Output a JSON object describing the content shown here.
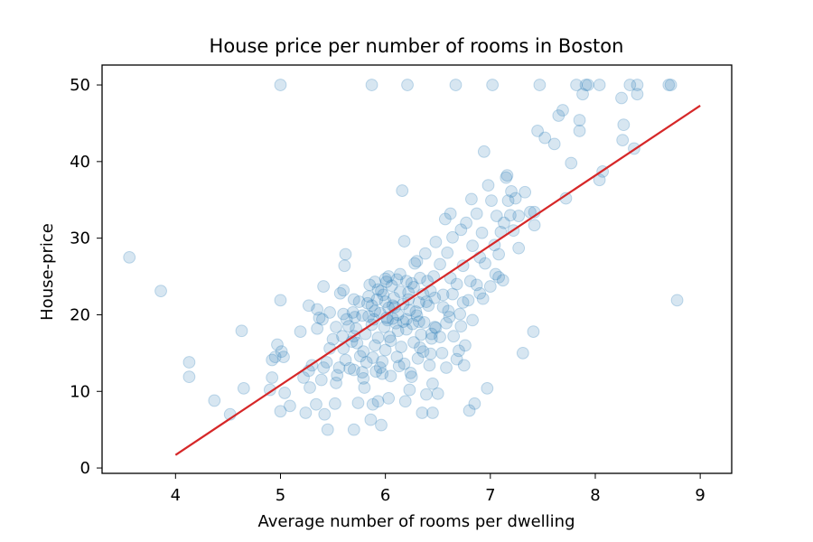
{
  "chart_data": {
    "type": "scatter",
    "title": "House price per number of rooms in Boston",
    "xlabel": "Average number of rooms per dwelling",
    "ylabel": "House-price",
    "xlim": [
      3.3,
      9.3
    ],
    "ylim": [
      -0.7,
      52.6
    ],
    "xticks": [
      4,
      5,
      6,
      7,
      8,
      9
    ],
    "yticks": [
      0,
      10,
      20,
      30,
      40,
      50
    ],
    "grid": false,
    "legend": "none",
    "series": [
      {
        "kind": "scatter",
        "color": "#1f77b4",
        "alpha": 0.18,
        "points": [
          [
            3.56,
            27.5
          ],
          [
            3.86,
            23.1
          ],
          [
            4.13,
            13.8
          ],
          [
            4.13,
            11.9
          ],
          [
            4.37,
            8.8
          ],
          [
            4.52,
            7.0
          ],
          [
            4.63,
            17.9
          ],
          [
            4.65,
            10.4
          ],
          [
            4.9,
            10.2
          ],
          [
            4.92,
            11.8
          ],
          [
            4.92,
            14.1
          ],
          [
            4.95,
            14.5
          ],
          [
            4.97,
            16.1
          ],
          [
            5.0,
            21.9
          ],
          [
            5.0,
            7.4
          ],
          [
            5.01,
            15.2
          ],
          [
            5.03,
            14.5
          ],
          [
            5.04,
            9.8
          ],
          [
            5.09,
            8.1
          ],
          [
            5.0,
            50.0
          ],
          [
            5.19,
            17.8
          ],
          [
            5.24,
            7.2
          ],
          [
            5.27,
            12.7
          ],
          [
            5.28,
            10.5
          ],
          [
            5.3,
            13.4
          ],
          [
            5.34,
            8.3
          ],
          [
            5.35,
            20.7
          ],
          [
            5.37,
            19.6
          ],
          [
            5.4,
            19.4
          ],
          [
            5.41,
            23.7
          ],
          [
            5.41,
            13.1
          ],
          [
            5.42,
            7.0
          ],
          [
            5.44,
            13.8
          ],
          [
            5.45,
            5.0
          ],
          [
            5.47,
            15.6
          ],
          [
            5.52,
            8.4
          ],
          [
            5.53,
            11.1
          ],
          [
            5.54,
            12.1
          ],
          [
            5.56,
            13.1
          ],
          [
            5.57,
            22.8
          ],
          [
            5.59,
            17.2
          ],
          [
            5.6,
            23.2
          ],
          [
            5.6,
            20.1
          ],
          [
            5.6,
            15.6
          ],
          [
            5.61,
            26.4
          ],
          [
            5.62,
            27.9
          ],
          [
            5.63,
            19.4
          ],
          [
            5.65,
            18.5
          ],
          [
            5.68,
            16.5
          ],
          [
            5.69,
            20.3
          ],
          [
            5.7,
            5.0
          ],
          [
            5.7,
            12.8
          ],
          [
            5.7,
            17.2
          ],
          [
            5.7,
            22.0
          ],
          [
            5.71,
            19.7
          ],
          [
            5.72,
            18.2
          ],
          [
            5.73,
            16.3
          ],
          [
            5.75,
            21.7
          ],
          [
            5.76,
            14.6
          ],
          [
            5.78,
            19.9
          ],
          [
            5.79,
            15.2
          ],
          [
            5.8,
            10.5
          ],
          [
            5.81,
            17.5
          ],
          [
            5.82,
            13.8
          ],
          [
            5.83,
            21.5
          ],
          [
            5.84,
            19.8
          ],
          [
            5.85,
            23.9
          ],
          [
            5.86,
            6.3
          ],
          [
            5.87,
            18.7
          ],
          [
            5.87,
            21.2
          ],
          [
            5.88,
            8.3
          ],
          [
            5.89,
            19.4
          ],
          [
            5.9,
            24.3
          ],
          [
            5.9,
            20.5
          ],
          [
            5.9,
            16.0
          ],
          [
            5.91,
            12.6
          ],
          [
            5.92,
            22.0
          ],
          [
            5.93,
            17.0
          ],
          [
            5.93,
            8.7
          ],
          [
            5.95,
            20.2
          ],
          [
            5.96,
            23.1
          ],
          [
            5.97,
            13.9
          ],
          [
            5.98,
            22.6
          ],
          [
            5.99,
            18.4
          ],
          [
            6.0,
            21.7
          ],
          [
            6.0,
            24.7
          ],
          [
            6.0,
            15.4
          ],
          [
            6.01,
            19.6
          ],
          [
            6.02,
            19.3
          ],
          [
            6.03,
            20.9
          ],
          [
            6.04,
            17.1
          ],
          [
            6.05,
            12.0
          ],
          [
            6.06,
            23.8
          ],
          [
            6.07,
            19.5
          ],
          [
            6.08,
            22.2
          ],
          [
            6.09,
            21.0
          ],
          [
            6.1,
            18.9
          ],
          [
            6.11,
            24.6
          ],
          [
            6.12,
            20.0
          ],
          [
            6.13,
            13.3
          ],
          [
            6.14,
            23.0
          ],
          [
            6.15,
            15.8
          ],
          [
            6.16,
            36.2
          ],
          [
            6.17,
            19.1
          ],
          [
            6.17,
            21.4
          ],
          [
            6.18,
            29.6
          ],
          [
            6.19,
            8.7
          ],
          [
            6.2,
            24.4
          ],
          [
            6.2,
            18.1
          ],
          [
            6.21,
            50.0
          ],
          [
            6.22,
            22.9
          ],
          [
            6.23,
            20.6
          ],
          [
            6.24,
            12.4
          ],
          [
            6.25,
            24.1
          ],
          [
            6.26,
            18.8
          ],
          [
            6.27,
            23.6
          ],
          [
            6.28,
            26.7
          ],
          [
            6.29,
            20.4
          ],
          [
            6.3,
            19.9
          ],
          [
            6.31,
            14.3
          ],
          [
            6.32,
            21.6
          ],
          [
            6.33,
            24.8
          ],
          [
            6.34,
            17.4
          ],
          [
            6.35,
            7.2
          ],
          [
            6.36,
            22.7
          ],
          [
            6.37,
            19.0
          ],
          [
            6.38,
            28.0
          ],
          [
            6.39,
            9.6
          ],
          [
            6.4,
            24.4
          ],
          [
            6.41,
            21.2
          ],
          [
            6.42,
            13.4
          ],
          [
            6.43,
            23.1
          ],
          [
            6.44,
            16.9
          ],
          [
            6.45,
            7.2
          ],
          [
            6.46,
            25.0
          ],
          [
            6.47,
            22.2
          ],
          [
            6.48,
            18.3
          ],
          [
            6.5,
            9.7
          ],
          [
            6.52,
            26.6
          ],
          [
            6.54,
            15.0
          ],
          [
            6.55,
            22.6
          ],
          [
            6.57,
            32.5
          ],
          [
            6.59,
            28.1
          ],
          [
            6.6,
            20.5
          ],
          [
            6.62,
            24.8
          ],
          [
            6.64,
            30.1
          ],
          [
            6.65,
            17.2
          ],
          [
            6.67,
            50.0
          ],
          [
            6.68,
            24.0
          ],
          [
            6.7,
            15.3
          ],
          [
            6.72,
            31.1
          ],
          [
            6.74,
            26.4
          ],
          [
            6.75,
            13.4
          ],
          [
            6.77,
            32.0
          ],
          [
            6.79,
            21.9
          ],
          [
            6.8,
            7.5
          ],
          [
            6.81,
            24.4
          ],
          [
            6.82,
            35.1
          ],
          [
            6.83,
            29.0
          ],
          [
            6.85,
            8.4
          ],
          [
            6.87,
            33.2
          ],
          [
            6.9,
            22.8
          ],
          [
            6.92,
            30.7
          ],
          [
            6.94,
            41.3
          ],
          [
            6.95,
            26.7
          ],
          [
            6.97,
            10.4
          ],
          [
            6.98,
            36.9
          ],
          [
            7.0,
            23.7
          ],
          [
            7.01,
            34.9
          ],
          [
            7.02,
            50.0
          ],
          [
            7.04,
            29.1
          ],
          [
            7.06,
            32.9
          ],
          [
            7.08,
            24.9
          ],
          [
            7.1,
            30.8
          ],
          [
            7.13,
            32.0
          ],
          [
            7.15,
            37.9
          ],
          [
            7.17,
            34.9
          ],
          [
            7.2,
            36.1
          ],
          [
            7.22,
            31.0
          ],
          [
            7.24,
            35.2
          ],
          [
            7.27,
            32.9
          ],
          [
            7.31,
            15.0
          ],
          [
            7.33,
            36.0
          ],
          [
            7.38,
            33.4
          ],
          [
            7.41,
            17.8
          ],
          [
            7.42,
            31.7
          ],
          [
            7.45,
            44.0
          ],
          [
            7.47,
            50.0
          ],
          [
            7.52,
            43.1
          ],
          [
            7.61,
            42.3
          ],
          [
            7.65,
            46.0
          ],
          [
            7.69,
            46.7
          ],
          [
            7.72,
            35.2
          ],
          [
            7.77,
            39.8
          ],
          [
            7.82,
            50.0
          ],
          [
            7.85,
            45.4
          ],
          [
            7.85,
            44.0
          ],
          [
            7.88,
            48.8
          ],
          [
            7.91,
            50.0
          ],
          [
            7.93,
            50.0
          ],
          [
            8.04,
            50.0
          ],
          [
            8.04,
            37.6
          ],
          [
            8.07,
            38.7
          ],
          [
            8.25,
            48.3
          ],
          [
            8.26,
            42.8
          ],
          [
            8.27,
            44.8
          ],
          [
            8.33,
            50.0
          ],
          [
            8.37,
            41.7
          ],
          [
            8.4,
            50.0
          ],
          [
            8.4,
            48.8
          ],
          [
            8.7,
            50.0
          ],
          [
            8.72,
            50.0
          ],
          [
            8.78,
            21.9
          ],
          [
            5.87,
            50.0
          ],
          [
            6.64,
            22.7
          ],
          [
            6.72,
            18.5
          ],
          [
            6.83,
            19.3
          ],
          [
            6.43,
            14.9
          ],
          [
            6.33,
            15.7
          ],
          [
            6.25,
            11.9
          ],
          [
            6.58,
            13.1
          ],
          [
            6.12,
            17.9
          ],
          [
            6.05,
            16.6
          ],
          [
            5.97,
            12.3
          ],
          [
            5.88,
            14.4
          ],
          [
            5.79,
            11.7
          ],
          [
            5.74,
            8.5
          ],
          [
            5.66,
            13.0
          ],
          [
            5.53,
            18.4
          ],
          [
            5.47,
            20.3
          ],
          [
            5.39,
            11.5
          ],
          [
            5.22,
            11.8
          ],
          [
            5.96,
            5.6
          ],
          [
            6.03,
            9.1
          ],
          [
            6.18,
            13.6
          ],
          [
            6.23,
            10.2
          ],
          [
            6.36,
            15.2
          ],
          [
            6.45,
            11.0
          ],
          [
            6.52,
            17.1
          ],
          [
            6.68,
            14.2
          ],
          [
            6.76,
            16.0
          ],
          [
            6.9,
            27.5
          ],
          [
            7.05,
            25.3
          ],
          [
            7.16,
            38.2
          ],
          [
            7.19,
            33.0
          ],
          [
            6.62,
            33.2
          ],
          [
            6.48,
            29.5
          ],
          [
            6.3,
            27.0
          ],
          [
            6.14,
            25.3
          ],
          [
            6.03,
            25.0
          ],
          [
            5.93,
            23.3
          ],
          [
            5.84,
            22.4
          ],
          [
            6.01,
            24.3
          ],
          [
            6.22,
            22.0
          ],
          [
            6.39,
            21.7
          ],
          [
            6.55,
            21.0
          ],
          [
            6.71,
            20.1
          ],
          [
            6.87,
            23.9
          ],
          [
            7.08,
            27.9
          ],
          [
            7.27,
            28.7
          ],
          [
            7.42,
            33.4
          ],
          [
            6.58,
            18.9
          ],
          [
            6.44,
            17.5
          ],
          [
            6.27,
            16.4
          ],
          [
            6.11,
            14.5
          ],
          [
            5.95,
            13.1
          ],
          [
            5.78,
            12.5
          ],
          [
            5.62,
            14.1
          ],
          [
            5.5,
            16.8
          ],
          [
            5.35,
            18.2
          ],
          [
            5.27,
            21.2
          ],
          [
            6.07,
            21.2
          ],
          [
            6.2,
            19.4
          ],
          [
            6.32,
            19.1
          ],
          [
            6.47,
            18.4
          ],
          [
            6.61,
            19.7
          ],
          [
            6.74,
            21.6
          ],
          [
            6.93,
            22.1
          ],
          [
            7.12,
            24.5
          ]
        ]
      },
      {
        "kind": "line",
        "color": "#d62728",
        "points": [
          [
            4.0,
            1.7
          ],
          [
            9.0,
            47.3
          ]
        ]
      }
    ]
  }
}
